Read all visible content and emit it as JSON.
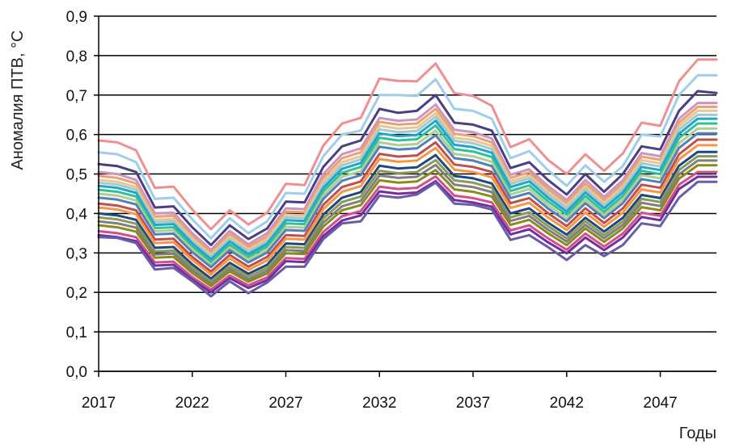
{
  "chart_data": {
    "type": "line",
    "title": "",
    "xlabel": "Годы",
    "ylabel": "Аномалия ПТВ, °С",
    "xlim": [
      2017,
      2050
    ],
    "ylim": [
      0,
      0.9
    ],
    "grid": true,
    "legend": "none",
    "x": [
      2017,
      2018,
      2019,
      2020,
      2021,
      2022,
      2023,
      2024,
      2025,
      2026,
      2027,
      2028,
      2029,
      2030,
      2031,
      2032,
      2033,
      2034,
      2035,
      2036,
      2037,
      2038,
      2039,
      2040,
      2041,
      2042,
      2043,
      2044,
      2045,
      2046,
      2047,
      2048,
      2049,
      2050
    ],
    "x_ticks": [
      "2017",
      "2022",
      "2027",
      "2032",
      "2037",
      "2042",
      "2047"
    ],
    "y_ticks": [
      "0,0",
      "0,1",
      "0,2",
      "0,3",
      "0,4",
      "0,5",
      "0,6",
      "0,7",
      "0,8",
      "0,9"
    ],
    "series": [
      {
        "color": "#ef8f8f",
        "values": [
          0.585,
          0.58,
          0.56,
          0.465,
          0.468,
          0.41,
          0.36,
          0.408,
          0.372,
          0.402,
          0.475,
          0.472,
          0.572,
          0.628,
          0.642,
          0.742,
          0.736,
          0.735,
          0.78,
          0.705,
          0.698,
          0.673,
          0.568,
          0.588,
          0.536,
          0.5,
          0.55,
          0.508,
          0.552,
          0.63,
          0.622,
          0.735,
          0.79,
          0.79
        ]
      },
      {
        "color": "#9fcdec",
        "values": [
          0.555,
          0.55,
          0.53,
          0.437,
          0.44,
          0.385,
          0.337,
          0.388,
          0.35,
          0.38,
          0.452,
          0.45,
          0.545,
          0.6,
          0.61,
          0.7,
          0.7,
          0.698,
          0.74,
          0.665,
          0.66,
          0.64,
          0.54,
          0.558,
          0.51,
          0.47,
          0.522,
          0.48,
          0.52,
          0.6,
          0.595,
          0.7,
          0.75,
          0.75
        ]
      },
      {
        "color": "#4a3f85",
        "values": [
          0.525,
          0.52,
          0.505,
          0.415,
          0.418,
          0.365,
          0.32,
          0.37,
          0.335,
          0.362,
          0.43,
          0.428,
          0.518,
          0.57,
          0.585,
          0.665,
          0.655,
          0.66,
          0.7,
          0.63,
          0.625,
          0.61,
          0.515,
          0.53,
          0.485,
          0.448,
          0.5,
          0.455,
          0.5,
          0.57,
          0.562,
          0.66,
          0.71,
          0.705
        ]
      },
      {
        "color": "#c995c4",
        "values": [
          0.505,
          0.5,
          0.485,
          0.4,
          0.402,
          0.35,
          0.308,
          0.356,
          0.322,
          0.35,
          0.413,
          0.411,
          0.5,
          0.55,
          0.565,
          0.642,
          0.635,
          0.638,
          0.676,
          0.612,
          0.606,
          0.59,
          0.498,
          0.512,
          0.47,
          0.434,
          0.485,
          0.442,
          0.484,
          0.553,
          0.545,
          0.64,
          0.68,
          0.68
        ]
      },
      {
        "color": "#eea06c",
        "values": [
          0.495,
          0.49,
          0.476,
          0.392,
          0.394,
          0.343,
          0.301,
          0.348,
          0.315,
          0.342,
          0.405,
          0.403,
          0.49,
          0.54,
          0.555,
          0.632,
          0.625,
          0.628,
          0.665,
          0.602,
          0.596,
          0.58,
          0.49,
          0.504,
          0.462,
          0.426,
          0.476,
          0.434,
          0.476,
          0.544,
          0.536,
          0.63,
          0.67,
          0.67
        ]
      },
      {
        "color": "#e7c79a",
        "values": [
          0.485,
          0.48,
          0.467,
          0.384,
          0.386,
          0.336,
          0.295,
          0.341,
          0.309,
          0.335,
          0.397,
          0.395,
          0.481,
          0.53,
          0.545,
          0.622,
          0.615,
          0.618,
          0.654,
          0.592,
          0.586,
          0.571,
          0.482,
          0.496,
          0.455,
          0.42,
          0.468,
          0.427,
          0.468,
          0.535,
          0.527,
          0.621,
          0.66,
          0.66
        ]
      },
      {
        "color": "#a3c9cf",
        "values": [
          0.478,
          0.473,
          0.46,
          0.378,
          0.38,
          0.33,
          0.29,
          0.335,
          0.303,
          0.329,
          0.39,
          0.388,
          0.473,
          0.522,
          0.537,
          0.613,
          0.606,
          0.609,
          0.645,
          0.584,
          0.578,
          0.563,
          0.475,
          0.489,
          0.448,
          0.413,
          0.461,
          0.42,
          0.461,
          0.527,
          0.519,
          0.612,
          0.65,
          0.65
        ]
      },
      {
        "color": "#21a6c7",
        "values": [
          0.47,
          0.465,
          0.452,
          0.371,
          0.373,
          0.324,
          0.284,
          0.329,
          0.297,
          0.323,
          0.383,
          0.381,
          0.465,
          0.513,
          0.528,
          0.603,
          0.596,
          0.599,
          0.635,
          0.574,
          0.568,
          0.554,
          0.467,
          0.481,
          0.44,
          0.405,
          0.453,
          0.413,
          0.453,
          0.518,
          0.51,
          0.602,
          0.64,
          0.64
        ]
      },
      {
        "color": "#2fc09d",
        "values": [
          0.46,
          0.455,
          0.443,
          0.363,
          0.365,
          0.316,
          0.277,
          0.321,
          0.29,
          0.316,
          0.375,
          0.373,
          0.456,
          0.503,
          0.518,
          0.592,
          0.585,
          0.588,
          0.623,
          0.563,
          0.557,
          0.543,
          0.457,
          0.471,
          0.431,
          0.397,
          0.444,
          0.404,
          0.444,
          0.508,
          0.5,
          0.591,
          0.628,
          0.628
        ]
      },
      {
        "color": "#b2cd8d",
        "values": [
          0.45,
          0.445,
          0.433,
          0.355,
          0.357,
          0.309,
          0.27,
          0.314,
          0.283,
          0.308,
          0.366,
          0.364,
          0.446,
          0.493,
          0.507,
          0.58,
          0.573,
          0.576,
          0.61,
          0.551,
          0.545,
          0.531,
          0.448,
          0.462,
          0.422,
          0.388,
          0.435,
          0.396,
          0.435,
          0.497,
          0.489,
          0.578,
          0.615,
          0.615
        ]
      },
      {
        "color": "#4f81bd",
        "values": [
          0.44,
          0.435,
          0.423,
          0.347,
          0.349,
          0.302,
          0.264,
          0.307,
          0.276,
          0.301,
          0.358,
          0.356,
          0.437,
          0.483,
          0.497,
          0.569,
          0.562,
          0.565,
          0.598,
          0.54,
          0.534,
          0.52,
          0.439,
          0.452,
          0.413,
          0.38,
          0.426,
          0.388,
          0.426,
          0.487,
          0.479,
          0.566,
          0.603,
          0.603
        ]
      },
      {
        "color": "#c0504d",
        "values": [
          0.425,
          0.42,
          0.408,
          0.334,
          0.336,
          0.29,
          0.253,
          0.295,
          0.265,
          0.29,
          0.345,
          0.343,
          0.422,
          0.467,
          0.481,
          0.551,
          0.544,
          0.547,
          0.58,
          0.524,
          0.518,
          0.505,
          0.426,
          0.439,
          0.401,
          0.368,
          0.413,
          0.376,
          0.413,
          0.473,
          0.465,
          0.55,
          0.587,
          0.587
        ]
      },
      {
        "color": "#f79646",
        "values": [
          0.415,
          0.41,
          0.398,
          0.325,
          0.327,
          0.282,
          0.245,
          0.286,
          0.257,
          0.281,
          0.336,
          0.334,
          0.411,
          0.455,
          0.469,
          0.538,
          0.531,
          0.534,
          0.566,
          0.511,
          0.505,
          0.492,
          0.414,
          0.427,
          0.39,
          0.358,
          0.402,
          0.366,
          0.402,
          0.461,
          0.453,
          0.537,
          0.573,
          0.573
        ]
      },
      {
        "color": "#1f497d",
        "values": [
          0.4,
          0.395,
          0.384,
          0.313,
          0.315,
          0.271,
          0.235,
          0.275,
          0.247,
          0.27,
          0.324,
          0.322,
          0.397,
          0.44,
          0.454,
          0.521,
          0.514,
          0.517,
          0.548,
          0.495,
          0.489,
          0.476,
          0.4,
          0.413,
          0.377,
          0.346,
          0.389,
          0.354,
          0.389,
          0.447,
          0.439,
          0.521,
          0.556,
          0.556
        ]
      },
      {
        "color": "#8a9a5b",
        "values": [
          0.39,
          0.385,
          0.374,
          0.304,
          0.306,
          0.263,
          0.228,
          0.267,
          0.24,
          0.262,
          0.315,
          0.313,
          0.387,
          0.429,
          0.443,
          0.508,
          0.502,
          0.505,
          0.535,
          0.484,
          0.478,
          0.465,
          0.39,
          0.403,
          0.368,
          0.337,
          0.38,
          0.345,
          0.38,
          0.437,
          0.429,
          0.51,
          0.545,
          0.545
        ]
      },
      {
        "color": "#7f7f7f",
        "values": [
          0.38,
          0.375,
          0.364,
          0.296,
          0.298,
          0.256,
          0.222,
          0.26,
          0.233,
          0.255,
          0.307,
          0.305,
          0.377,
          0.418,
          0.432,
          0.496,
          0.49,
          0.493,
          0.523,
          0.473,
          0.467,
          0.454,
          0.381,
          0.394,
          0.359,
          0.329,
          0.371,
          0.337,
          0.371,
          0.427,
          0.419,
          0.499,
          0.534,
          0.534
        ]
      },
      {
        "color": "#8b8b1a",
        "values": [
          0.37,
          0.365,
          0.354,
          0.288,
          0.29,
          0.249,
          0.216,
          0.253,
          0.227,
          0.248,
          0.299,
          0.297,
          0.367,
          0.408,
          0.421,
          0.484,
          0.478,
          0.481,
          0.51,
          0.461,
          0.455,
          0.443,
          0.371,
          0.384,
          0.35,
          0.32,
          0.362,
          0.328,
          0.362,
          0.416,
          0.408,
          0.488,
          0.522,
          0.522
        ]
      },
      {
        "color": "#d24f8c",
        "values": [
          0.355,
          0.35,
          0.34,
          0.276,
          0.278,
          0.239,
          0.207,
          0.243,
          0.218,
          0.238,
          0.287,
          0.285,
          0.353,
          0.393,
          0.406,
          0.468,
          0.462,
          0.465,
          0.494,
          0.445,
          0.439,
          0.428,
          0.357,
          0.37,
          0.337,
          0.308,
          0.349,
          0.316,
          0.349,
          0.402,
          0.394,
          0.473,
          0.505,
          0.505
        ]
      },
      {
        "color": "#7030a0",
        "values": [
          0.345,
          0.34,
          0.33,
          0.268,
          0.27,
          0.232,
          0.2,
          0.236,
          0.211,
          0.231,
          0.279,
          0.277,
          0.343,
          0.382,
          0.395,
          0.456,
          0.45,
          0.453,
          0.482,
          0.434,
          0.428,
          0.417,
          0.347,
          0.36,
          0.327,
          0.299,
          0.339,
          0.307,
          0.339,
          0.391,
          0.383,
          0.462,
          0.493,
          0.493
        ]
      },
      {
        "color": "#6b5ba8",
        "values": [
          0.34,
          0.338,
          0.325,
          0.258,
          0.262,
          0.228,
          0.19,
          0.228,
          0.198,
          0.225,
          0.265,
          0.265,
          0.335,
          0.375,
          0.38,
          0.445,
          0.44,
          0.448,
          0.478,
          0.425,
          0.422,
          0.41,
          0.333,
          0.345,
          0.315,
          0.282,
          0.32,
          0.292,
          0.32,
          0.375,
          0.368,
          0.44,
          0.48,
          0.48
        ]
      }
    ]
  }
}
